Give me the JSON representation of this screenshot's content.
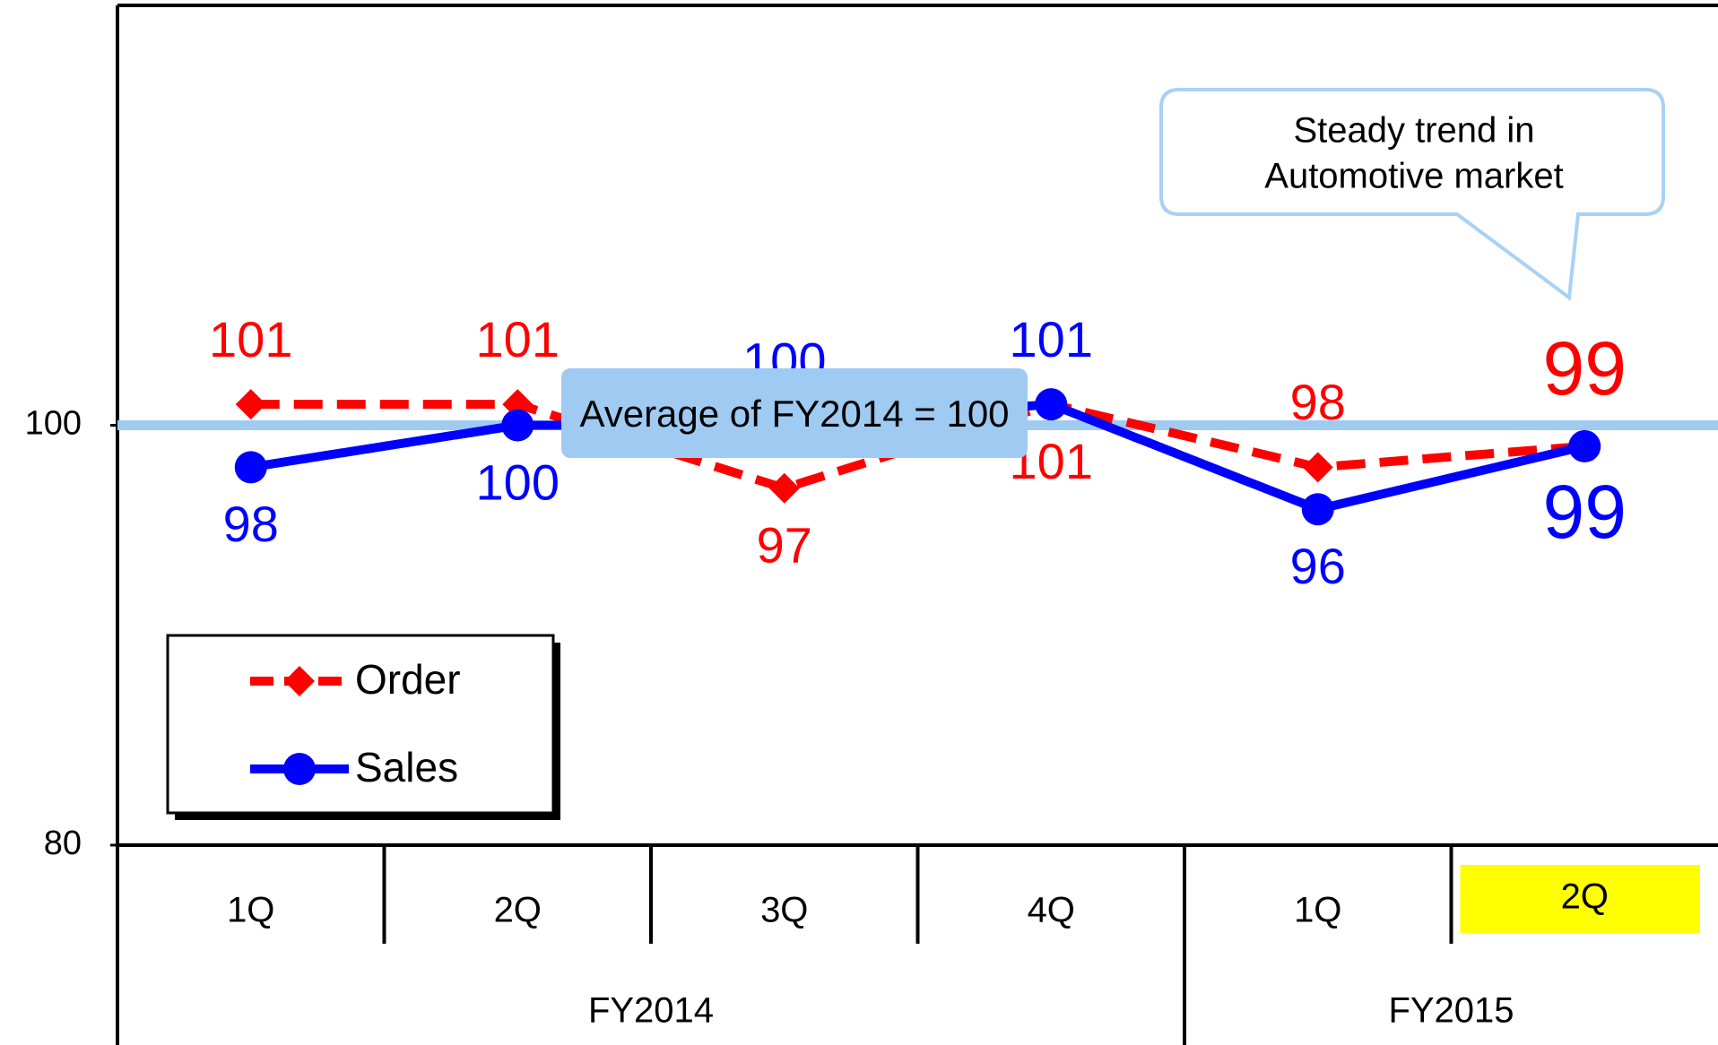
{
  "chart_data": {
    "type": "line",
    "categories": [
      "1Q",
      "2Q",
      "3Q",
      "4Q",
      "1Q",
      "2Q"
    ],
    "category_groups": [
      {
        "label": "FY2014",
        "size": 4
      },
      {
        "label": "FY2015",
        "size": 2
      }
    ],
    "series": [
      {
        "name": "Order",
        "color": "#ff0000",
        "dashed": true,
        "marker": "diamond",
        "values": [
          101,
          101,
          97,
          101,
          98,
          99
        ]
      },
      {
        "name": "Sales",
        "color": "#0000ff",
        "dashed": false,
        "marker": "circle",
        "values": [
          98,
          100,
          100,
          101,
          96,
          99
        ]
      }
    ],
    "ylim": [
      80,
      120
    ],
    "yticks": [
      80,
      100
    ],
    "reference_line": {
      "value": 100,
      "label": "Average of FY2014 = 100",
      "color": "#9fcbf3"
    },
    "callout": [
      "Steady trend in",
      "Automotive market"
    ],
    "highlight": {
      "category": 5,
      "color": "#ffff00"
    },
    "legend": "lower-left"
  }
}
